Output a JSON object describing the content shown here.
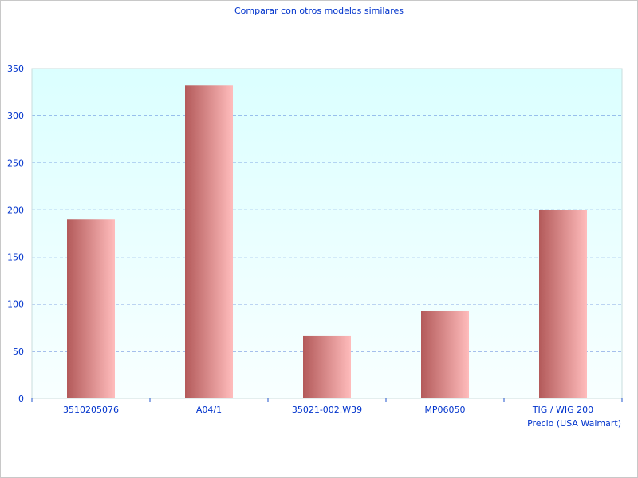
{
  "chart_data": {
    "type": "bar",
    "title": "Comparar con otros modelos similares",
    "categories": [
      "3510205076",
      "A04/1",
      "35021-002.W39",
      "MP06050",
      "TIG / WIG 200"
    ],
    "series": [
      {
        "name": "Precio (USA Walmart)",
        "values": [
          190,
          332,
          66,
          93,
          200
        ]
      }
    ],
    "xlabel": "Precio (USA Walmart)",
    "ylabel": "",
    "ylim": [
      0,
      350
    ],
    "yticks": [
      0,
      50,
      100,
      150,
      200,
      250,
      300,
      350
    ],
    "grid": true,
    "colors": {
      "bar_dark": "#b35a5a",
      "bar_light": "#ffbcbc",
      "grid": "#2255cc",
      "text": "#0033cc",
      "bg_top": "#dbffff",
      "bg_bottom": "#f8ffff"
    }
  }
}
